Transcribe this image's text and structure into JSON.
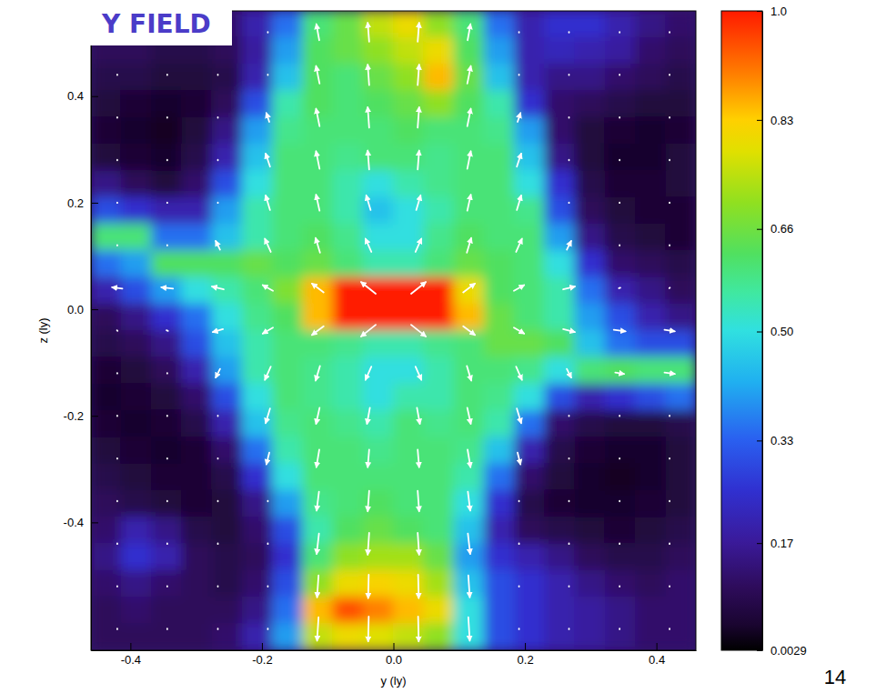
{
  "chart_data": {
    "type": "heatmap",
    "title": "Y FIELD",
    "page_number": "14",
    "x_label": "y (ly)",
    "y_label": "z (ly)",
    "xlim": [
      -0.46,
      0.46
    ],
    "ylim": [
      -0.64,
      0.56
    ],
    "xticks": [
      -0.4,
      -0.2,
      {
        "value": 0,
        "label": "0.0"
      },
      0.2,
      0.4
    ],
    "yticks": [
      -0.4,
      -0.2,
      {
        "value": 0,
        "label": "0.0"
      },
      0.2,
      0.4
    ],
    "x": [
      -0.437,
      -0.391,
      -0.345,
      -0.299,
      -0.253,
      -0.207,
      -0.161,
      -0.115,
      -0.069,
      -0.023,
      0.023,
      0.069,
      0.115,
      0.161,
      0.207,
      0.253,
      0.299,
      0.345,
      0.391,
      0.437
    ],
    "y": [
      0.535,
      0.485,
      0.435,
      0.385,
      0.335,
      0.285,
      0.235,
      0.185,
      0.135,
      0.085,
      0.035,
      -0.015,
      -0.065,
      -0.115,
      -0.165,
      -0.215,
      -0.265,
      -0.315,
      -0.365,
      -0.415,
      -0.465,
      -0.515,
      -0.565,
      -0.615
    ],
    "cells": [
      [
        0.12,
        0.12,
        0.1,
        0.1,
        0.12,
        0.2,
        0.35,
        0.6,
        0.65,
        0.75,
        0.8,
        0.7,
        0.6,
        0.35,
        0.2,
        0.25,
        0.25,
        0.2,
        0.15,
        0.12
      ],
      [
        0.1,
        0.1,
        0.08,
        0.08,
        0.1,
        0.18,
        0.4,
        0.62,
        0.65,
        0.7,
        0.75,
        0.8,
        0.62,
        0.4,
        0.2,
        0.22,
        0.2,
        0.18,
        0.12,
        0.1
      ],
      [
        0.08,
        0.08,
        0.06,
        0.06,
        0.08,
        0.2,
        0.45,
        0.62,
        0.6,
        0.65,
        0.7,
        0.85,
        0.65,
        0.45,
        0.2,
        0.15,
        0.15,
        0.12,
        0.1,
        0.08
      ],
      [
        0.06,
        0.05,
        0.04,
        0.05,
        0.1,
        0.3,
        0.55,
        0.62,
        0.6,
        0.62,
        0.65,
        0.7,
        0.62,
        0.55,
        0.25,
        0.12,
        0.1,
        0.08,
        0.06,
        0.06
      ],
      [
        0.05,
        0.04,
        0.03,
        0.06,
        0.15,
        0.4,
        0.58,
        0.6,
        0.6,
        0.6,
        0.62,
        0.6,
        0.6,
        0.58,
        0.4,
        0.12,
        0.06,
        0.05,
        0.04,
        0.05
      ],
      [
        0.06,
        0.05,
        0.04,
        0.08,
        0.2,
        0.45,
        0.6,
        0.6,
        0.58,
        0.6,
        0.6,
        0.58,
        0.6,
        0.6,
        0.45,
        0.15,
        0.06,
        0.04,
        0.04,
        0.06
      ],
      [
        0.15,
        0.1,
        0.06,
        0.12,
        0.3,
        0.5,
        0.6,
        0.6,
        0.55,
        0.5,
        0.55,
        0.58,
        0.6,
        0.6,
        0.5,
        0.25,
        0.08,
        0.05,
        0.05,
        0.06
      ],
      [
        0.3,
        0.25,
        0.2,
        0.2,
        0.4,
        0.55,
        0.6,
        0.6,
        0.55,
        0.45,
        0.5,
        0.55,
        0.6,
        0.6,
        0.58,
        0.3,
        0.1,
        0.06,
        0.05,
        0.05
      ],
      [
        0.6,
        0.6,
        0.35,
        0.35,
        0.45,
        0.55,
        0.6,
        0.62,
        0.58,
        0.5,
        0.5,
        0.58,
        0.62,
        0.6,
        0.6,
        0.4,
        0.15,
        0.08,
        0.06,
        0.05
      ],
      [
        0.35,
        0.4,
        0.62,
        0.62,
        0.62,
        0.65,
        0.62,
        0.65,
        0.6,
        0.55,
        0.55,
        0.6,
        0.65,
        0.62,
        0.6,
        0.5,
        0.25,
        0.12,
        0.1,
        0.08
      ],
      [
        0.2,
        0.3,
        0.4,
        0.5,
        0.55,
        0.6,
        0.68,
        0.85,
        1.0,
        1.0,
        1.0,
        1.0,
        0.8,
        0.62,
        0.6,
        0.55,
        0.35,
        0.2,
        0.15,
        0.1
      ],
      [
        0.1,
        0.15,
        0.25,
        0.35,
        0.5,
        0.58,
        0.62,
        0.85,
        1.0,
        1.0,
        1.0,
        1.0,
        0.85,
        0.65,
        0.6,
        0.55,
        0.4,
        0.3,
        0.2,
        0.15
      ],
      [
        0.08,
        0.1,
        0.15,
        0.3,
        0.45,
        0.55,
        0.6,
        0.6,
        0.58,
        0.55,
        0.55,
        0.58,
        0.6,
        0.65,
        0.65,
        0.62,
        0.45,
        0.35,
        0.3,
        0.3
      ],
      [
        0.05,
        0.06,
        0.1,
        0.2,
        0.4,
        0.55,
        0.6,
        0.58,
        0.55,
        0.5,
        0.5,
        0.55,
        0.6,
        0.6,
        0.58,
        0.5,
        0.6,
        0.62,
        0.6,
        0.6
      ],
      [
        0.04,
        0.05,
        0.06,
        0.12,
        0.3,
        0.5,
        0.6,
        0.58,
        0.55,
        0.5,
        0.55,
        0.55,
        0.6,
        0.58,
        0.5,
        0.3,
        0.2,
        0.25,
        0.3,
        0.35
      ],
      [
        0.05,
        0.04,
        0.05,
        0.08,
        0.2,
        0.45,
        0.58,
        0.6,
        0.58,
        0.55,
        0.6,
        0.58,
        0.6,
        0.55,
        0.35,
        0.12,
        0.08,
        0.06,
        0.06,
        0.08
      ],
      [
        0.06,
        0.05,
        0.04,
        0.05,
        0.12,
        0.35,
        0.55,
        0.6,
        0.6,
        0.58,
        0.6,
        0.6,
        0.58,
        0.45,
        0.2,
        0.08,
        0.05,
        0.04,
        0.04,
        0.06
      ],
      [
        0.08,
        0.06,
        0.05,
        0.05,
        0.08,
        0.25,
        0.5,
        0.6,
        0.6,
        0.6,
        0.6,
        0.6,
        0.55,
        0.35,
        0.12,
        0.06,
        0.04,
        0.03,
        0.04,
        0.06
      ],
      [
        0.1,
        0.08,
        0.06,
        0.05,
        0.06,
        0.15,
        0.4,
        0.58,
        0.6,
        0.62,
        0.6,
        0.6,
        0.5,
        0.25,
        0.08,
        0.05,
        0.04,
        0.04,
        0.05,
        0.06
      ],
      [
        0.12,
        0.2,
        0.15,
        0.08,
        0.06,
        0.12,
        0.3,
        0.55,
        0.62,
        0.65,
        0.62,
        0.6,
        0.45,
        0.2,
        0.1,
        0.08,
        0.06,
        0.05,
        0.06,
        0.08
      ],
      [
        0.15,
        0.25,
        0.2,
        0.1,
        0.08,
        0.1,
        0.25,
        0.6,
        0.7,
        0.72,
        0.72,
        0.65,
        0.4,
        0.25,
        0.2,
        0.15,
        0.1,
        0.08,
        0.08,
        0.1
      ],
      [
        0.12,
        0.15,
        0.12,
        0.1,
        0.08,
        0.12,
        0.3,
        0.7,
        0.8,
        0.82,
        0.8,
        0.72,
        0.45,
        0.3,
        0.25,
        0.2,
        0.15,
        0.12,
        0.1,
        0.12
      ],
      [
        0.1,
        0.12,
        0.1,
        0.1,
        0.1,
        0.15,
        0.35,
        0.85,
        0.95,
        0.9,
        0.85,
        0.8,
        0.5,
        0.3,
        0.25,
        0.2,
        0.18,
        0.15,
        0.12,
        0.12
      ],
      [
        0.1,
        0.1,
        0.1,
        0.1,
        0.12,
        0.2,
        0.4,
        0.75,
        0.8,
        0.78,
        0.75,
        0.7,
        0.5,
        0.3,
        0.25,
        0.2,
        0.18,
        0.15,
        0.12,
        0.12
      ]
    ],
    "colorbar": {
      "range": [
        0.0029,
        1
      ],
      "ticks": [
        0.0029,
        0.17,
        0.33,
        {
          "value": 0.5,
          "label": "0.50"
        },
        0.66,
        0.83,
        {
          "value": 1,
          "label": "1.0"
        }
      ]
    },
    "vectors": {
      "x": [
        -0.42,
        -0.344,
        -0.267,
        -0.191,
        -0.115,
        -0.038,
        0.038,
        0.115,
        0.191,
        0.267,
        0.344,
        0.42
      ],
      "y": [
        0.52,
        0.44,
        0.36,
        0.28,
        0.2,
        0.12,
        0.04,
        -0.04,
        -0.12,
        -0.2,
        -0.28,
        -0.36,
        -0.44,
        -0.52,
        -0.6
      ],
      "u": [
        [
          0,
          0,
          0,
          0,
          -0.1,
          -0.05,
          0.05,
          0.1,
          0,
          0,
          0,
          0
        ],
        [
          0,
          0,
          0,
          0,
          -0.12,
          -0.05,
          0.05,
          0.12,
          0,
          0,
          0,
          0
        ],
        [
          0,
          0,
          0,
          -0.1,
          -0.12,
          -0.05,
          0.05,
          0.12,
          0.1,
          0,
          0,
          0
        ],
        [
          0,
          0,
          0,
          -0.15,
          -0.12,
          -0.05,
          0.05,
          0.12,
          0.15,
          0,
          0,
          0
        ],
        [
          0,
          0,
          0,
          -0.15,
          -0.12,
          -0.15,
          0.15,
          0.12,
          0.15,
          0,
          0,
          0
        ],
        [
          0,
          0,
          -0.15,
          -0.2,
          -0.15,
          -0.2,
          0.2,
          0.15,
          0.2,
          0.15,
          0,
          0
        ],
        [
          -0.35,
          -0.4,
          -0.4,
          -0.35,
          -0.4,
          -0.5,
          0.5,
          0.4,
          0.35,
          0.4,
          0.05,
          0.02
        ],
        [
          0.02,
          0.05,
          -0.35,
          -0.35,
          -0.4,
          -0.5,
          0.5,
          0.4,
          0.35,
          0.4,
          0.4,
          0.35
        ],
        [
          0,
          0,
          -0.15,
          -0.2,
          -0.15,
          -0.2,
          0.2,
          0.15,
          0.2,
          0.15,
          0.3,
          0.35
        ],
        [
          0,
          0,
          0,
          -0.15,
          -0.12,
          -0.1,
          0.1,
          0.12,
          0.15,
          0,
          0,
          0
        ],
        [
          0,
          0,
          0,
          -0.1,
          -0.1,
          -0.05,
          0.05,
          0.1,
          0.1,
          0,
          0,
          0
        ],
        [
          0,
          0,
          0,
          0,
          -0.08,
          -0.05,
          0.05,
          0.08,
          0,
          0,
          0,
          0
        ],
        [
          0,
          0,
          0,
          0,
          -0.08,
          -0.05,
          0.05,
          0.08,
          0,
          0,
          0,
          0
        ],
        [
          0,
          0,
          0,
          0,
          -0.05,
          -0.02,
          0.02,
          0.05,
          0,
          0,
          0,
          0
        ],
        [
          0,
          0,
          0,
          0,
          -0.05,
          -0.02,
          0.02,
          0.05,
          0,
          0,
          0,
          0
        ]
      ],
      "v": [
        [
          0.02,
          0.02,
          0.02,
          0.02,
          0.55,
          0.65,
          0.65,
          0.55,
          0.02,
          0.02,
          0.02,
          0.02
        ],
        [
          0.02,
          0.02,
          0.02,
          0.02,
          0.6,
          0.7,
          0.7,
          0.6,
          0.02,
          0.02,
          0.02,
          0.02
        ],
        [
          0.02,
          0.02,
          0.02,
          0.3,
          0.6,
          0.7,
          0.7,
          0.6,
          0.3,
          0.02,
          0.02,
          0.02
        ],
        [
          0.02,
          0.02,
          0.02,
          0.45,
          0.6,
          0.65,
          0.65,
          0.6,
          0.45,
          0.02,
          0.02,
          0.02
        ],
        [
          0.02,
          0.02,
          0.02,
          0.5,
          0.55,
          0.5,
          0.5,
          0.55,
          0.5,
          0.02,
          0.02,
          0.02
        ],
        [
          0.02,
          0.02,
          0.3,
          0.45,
          0.5,
          0.45,
          0.45,
          0.5,
          0.45,
          0.3,
          0.02,
          0.02
        ],
        [
          0.05,
          0.05,
          0.1,
          0.2,
          0.3,
          0.4,
          0.4,
          0.3,
          0.2,
          0.1,
          0.02,
          0.02
        ],
        [
          -0.02,
          -0.02,
          -0.1,
          -0.2,
          -0.3,
          -0.4,
          -0.4,
          -0.3,
          -0.2,
          -0.1,
          -0.05,
          -0.05
        ],
        [
          -0.02,
          -0.02,
          -0.3,
          -0.45,
          -0.5,
          -0.45,
          -0.45,
          -0.5,
          -0.45,
          -0.3,
          -0.05,
          -0.05
        ],
        [
          -0.02,
          -0.02,
          -0.02,
          -0.5,
          -0.55,
          -0.55,
          -0.55,
          -0.55,
          -0.5,
          -0.02,
          -0.02,
          -0.02
        ],
        [
          -0.02,
          -0.02,
          -0.02,
          -0.4,
          -0.6,
          -0.6,
          -0.6,
          -0.6,
          -0.4,
          -0.02,
          -0.02,
          -0.02
        ],
        [
          -0.02,
          -0.02,
          -0.02,
          -0.02,
          -0.65,
          -0.7,
          -0.7,
          -0.65,
          -0.02,
          -0.02,
          -0.02,
          -0.02
        ],
        [
          -0.02,
          -0.02,
          -0.02,
          -0.02,
          -0.7,
          -0.75,
          -0.75,
          -0.7,
          -0.02,
          -0.02,
          -0.02,
          -0.02
        ],
        [
          -0.02,
          -0.02,
          -0.02,
          -0.02,
          -0.75,
          -0.8,
          -0.8,
          -0.75,
          -0.02,
          -0.02,
          -0.02,
          -0.02
        ],
        [
          -0.02,
          -0.02,
          -0.02,
          -0.02,
          -0.8,
          -0.85,
          -0.85,
          -0.8,
          -0.02,
          -0.02,
          -0.02,
          -0.02
        ]
      ]
    }
  }
}
